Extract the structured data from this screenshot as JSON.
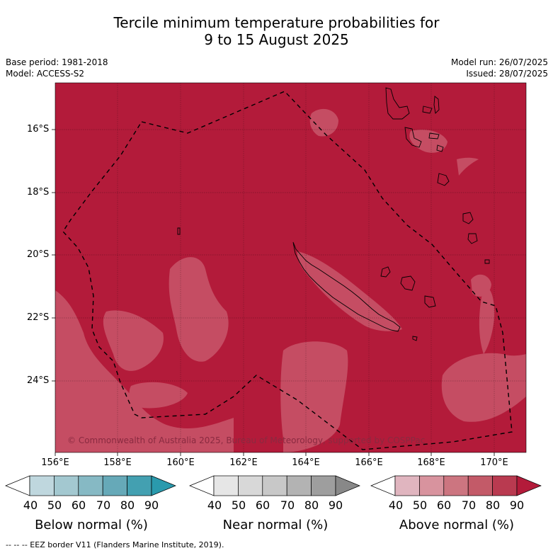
{
  "title": {
    "line1": "Tercile minimum temperature probabilities for",
    "line2": "9 to 15 August 2025"
  },
  "meta_left": {
    "base_period": "Base period: 1981-2018",
    "model": "Model: ACCESS-S2"
  },
  "meta_right": {
    "model_run": "Model run: 26/07/2025",
    "issued": "Issued: 28/07/2025"
  },
  "map": {
    "lat_labels": [
      "16°S",
      "18°S",
      "20°S",
      "22°S",
      "24°S"
    ],
    "lon_labels": [
      "156°E",
      "158°E",
      "160°E",
      "162°E",
      "164°E",
      "166°E",
      "168°E",
      "170°E"
    ],
    "copyright": "© Commonwealth of Australia 2025, Bureau of Meteorology, supported by COSPPac",
    "colors": {
      "above_80_90": "#b31b3a",
      "above_70_80": "#c54d63",
      "coast": "#000000"
    }
  },
  "colorbars": [
    {
      "title": "Below normal (%)",
      "ticks": [
        "40",
        "50",
        "60",
        "70",
        "80",
        "90"
      ],
      "colors": [
        "#ffffff",
        "#bfd7de",
        "#a3c8d0",
        "#86b9c4",
        "#66a9b8",
        "#43a0b1",
        "#2a9aad"
      ]
    },
    {
      "title": "Near normal (%)",
      "ticks": [
        "40",
        "50",
        "60",
        "70",
        "80",
        "90"
      ],
      "colors": [
        "#ffffff",
        "#e6e6e6",
        "#d8d8d8",
        "#c8c8c8",
        "#b3b3b3",
        "#9e9e9e",
        "#888888"
      ]
    },
    {
      "title": "Above normal (%)",
      "ticks": [
        "40",
        "50",
        "60",
        "70",
        "80",
        "90"
      ],
      "colors": [
        "#ffffff",
        "#e0b5bf",
        "#d8939e",
        "#cc7580",
        "#c35a68",
        "#b93a50",
        "#b31b3a"
      ]
    }
  ],
  "footer": "-- -- -- EEZ border V11 (Flanders Marine Institute, 2019)."
}
